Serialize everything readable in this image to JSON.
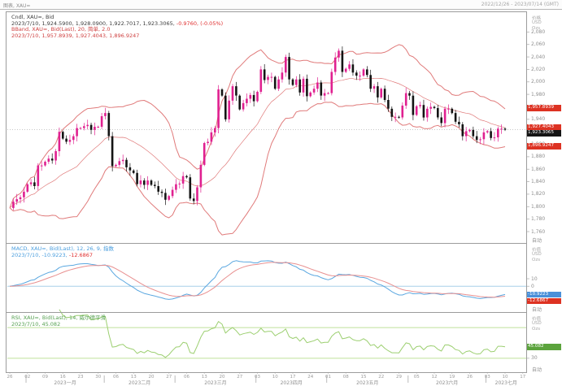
{
  "window": {
    "tab_label": "图表, XAU=",
    "date_range": "2022/12/26 - 2023/07/14 (GMT)"
  },
  "main_panel": {
    "legend": {
      "line1": "Cndl, XAU=, Bid",
      "line2_black": "2023/7/10, 1,924.5900, 1,928.0900, 1,922.7017, 1,923.3065,",
      "line2_red": "-0.9760, (-0.05%)",
      "line3": "BBand, XAU=, Bid(Last), 20, 简单, 2.0",
      "line4": "2023/7/10, 1,957.8939, 1,927.4043, 1,896.9247"
    },
    "axis": {
      "title_lines": [
        "价格",
        "USD",
        "Ozs"
      ],
      "auto_label": "自动",
      "ticks": [
        {
          "label": "2,080",
          "value": 2080
        },
        {
          "label": "2,060",
          "value": 2060
        },
        {
          "label": "2,040",
          "value": 2040
        },
        {
          "label": "2,020",
          "value": 2020
        },
        {
          "label": "2,000",
          "value": 2000
        },
        {
          "label": "1,980",
          "value": 1980
        },
        {
          "label": "1,960",
          "value": 1960
        },
        {
          "label": "1,940",
          "value": 1940
        },
        {
          "label": "1,920",
          "value": 1920
        },
        {
          "label": "1,900",
          "value": 1900
        },
        {
          "label": "1,880",
          "value": 1880
        },
        {
          "label": "1,860",
          "value": 1860
        },
        {
          "label": "1,840",
          "value": 1840
        },
        {
          "label": "1,820",
          "value": 1820
        },
        {
          "label": "1,800",
          "value": 1800
        },
        {
          "label": "1,780",
          "value": 1780
        },
        {
          "label": "1,760",
          "value": 1760
        }
      ],
      "price_boxes": [
        {
          "name": "bb-upper",
          "label": "1,957.8939",
          "price": 1957.8939,
          "bg": "#dd3222"
        },
        {
          "name": "bb-middle",
          "label": "1,927.4043",
          "price": 1927.4043,
          "bg": "#dd3222"
        },
        {
          "name": "last-price",
          "label": "1,923.3065",
          "price": 1923.3065,
          "bg": "#141414"
        },
        {
          "name": "bb-lower",
          "label": "1,896.9247",
          "price": 1896.9247,
          "bg": "#dd3222"
        }
      ]
    }
  },
  "macd_panel": {
    "legend": {
      "line1": "MACD, XAU=, Bid(Last), 12, 26, 9, 指数",
      "line2_blue": "2023/7/10, -10.9223,",
      "line2_red": "-12.6867"
    },
    "axis": {
      "title_lines": [
        "价值",
        "USD",
        "Ozs"
      ],
      "auto_label": "自动",
      "ticks": [
        {
          "label": "10",
          "value": 10
        },
        {
          "label": "0",
          "value": 0
        }
      ],
      "value_boxes": [
        {
          "name": "macd-value",
          "label": "-10.9223",
          "value": -10.9223,
          "bg": "#4a90d9"
        },
        {
          "name": "macd-signal-value",
          "label": "-12.6867",
          "value": -12.6867,
          "bg": "#dd3222"
        }
      ]
    }
  },
  "rsi_panel": {
    "legend": {
      "line1": "RSI, XAU=, Bid(Last), 14, 威尔德平滑",
      "line2": "2023/7/10, 45.082"
    },
    "axis": {
      "title_lines": [
        "价值",
        "USD",
        "Ozs"
      ],
      "auto_label": "自动",
      "ticks": [
        {
          "label": "30",
          "value": 30
        }
      ],
      "value_boxes": [
        {
          "name": "rsi-value",
          "label": "45.082",
          "value": 45.082,
          "bg": "#5ba33c"
        }
      ]
    }
  },
  "time_axis": {
    "day_labels": [
      "26",
      "02",
      "09",
      "16",
      "23",
      "30",
      "06",
      "13",
      "20",
      "27",
      "06",
      "13",
      "20",
      "27",
      "03",
      "10",
      "17",
      "24",
      "01",
      "08",
      "15",
      "22",
      "29",
      "05",
      "12",
      "19",
      "26",
      "03",
      "10",
      "17"
    ],
    "day_indices": [
      0,
      5,
      10,
      15,
      20,
      25,
      30,
      35,
      40,
      45,
      50,
      55,
      60,
      65,
      70,
      75,
      80,
      85,
      90,
      95,
      100,
      105,
      110,
      115,
      120,
      125,
      130,
      135,
      140,
      145
    ],
    "month_labels": [
      "2023一月",
      "2023二月",
      "2023三月",
      "2023四月",
      "2023五月",
      "2023六月",
      "2023七月"
    ],
    "month_boundaries": [
      4.6,
      26.7,
      46.7,
      69.6,
      89.6,
      112.6,
      134.6,
      146
    ]
  },
  "chart_data": {
    "type": "candlestick",
    "instrument": "XAU=",
    "quote": "Bid",
    "interval": "daily",
    "x_range": [
      "2022/12/26",
      "2023/07/14"
    ],
    "price_axis": {
      "min": 1760,
      "max": 2100,
      "tick_step": 20,
      "unit": "USD/Ozs"
    },
    "note": "daily closes read from pixels; candle open = previous close",
    "closes": [
      1798,
      1808,
      1812,
      1815,
      1824,
      1836,
      1839,
      1833,
      1866,
      1866,
      1872,
      1877,
      1874,
      1889,
      1920,
      1909,
      1904,
      1907,
      1913,
      1926,
      1926,
      1929,
      1931,
      1923,
      1928,
      1928,
      1945,
      1950,
      1913,
      1865,
      1867,
      1873,
      1875,
      1863,
      1858,
      1854,
      1836,
      1842,
      1835,
      1842,
      1835,
      1833,
      1824,
      1822,
      1811,
      1817,
      1827,
      1836,
      1837,
      1849,
      1847,
      1813,
      1809,
      1831,
      1867,
      1902,
      1904,
      1919,
      1926,
      1988,
      1978,
      1940,
      1970,
      1993,
      1978,
      1956,
      1966,
      1973,
      1979,
      1969,
      1984,
      2020,
      2003,
      2008,
      2008,
      1989,
      2004,
      2015,
      2040,
      2004,
      1995,
      2004,
      1983,
      2005,
      1977,
      1983,
      1989,
      1999,
      1978,
      1982,
      1982,
      2016,
      2039,
      2050,
      2016,
      2021,
      2028,
      2015,
      2010,
      2010,
      2020,
      2011,
      1989,
      1993,
      1975,
      1989,
      1971,
      1957,
      1944,
      1944,
      1943,
      1962,
      1982,
      1978,
      1947,
      1961,
      1963,
      1943,
      1957,
      1960,
      1958,
      1943,
      1934,
      1957,
      1957,
      1950,
      1936,
      1932,
      1913,
      1921,
      1923,
      1913,
      1907,
      1908,
      1919,
      1921,
      1910,
      1911,
      1925,
      1925,
      1923.3
    ],
    "last_bar": {
      "date": "2023/7/10",
      "open": 1924.59,
      "high": 1928.09,
      "low": 1922.7017,
      "close": 1923.3065,
      "change": -0.976,
      "change_pct": "-0.05%"
    },
    "bollinger": {
      "period": 20,
      "type": "简单",
      "stdev": 2.0,
      "upper": 1957.8939,
      "middle": 1927.4043,
      "lower": 1896.9247
    },
    "macd": {
      "fast": 12,
      "slow": 26,
      "signal": 9,
      "method": "指数",
      "value": -10.9223,
      "signal_value": -12.6867,
      "axis_range": [
        -30,
        50
      ]
    },
    "rsi": {
      "period": 14,
      "method": "威尔德平滑",
      "value": 45.082,
      "levels": [
        70,
        30
      ],
      "axis_range": [
        15,
        85
      ]
    }
  },
  "colors": {
    "candle_up": "#e02090",
    "candle_down": "#141414",
    "bband": "#e07a7a",
    "macd_line": "#5aa7e0",
    "macd_signal": "#e89090",
    "macd_zero": "#a8cfe8",
    "rsi_line": "#9ccf70",
    "rsi_levels": "#bfe09a",
    "axis_text": "#8f8f8f",
    "box_red": "#dd3222",
    "box_black": "#141414",
    "box_blue": "#4a90d9",
    "box_green": "#5ba33c"
  }
}
